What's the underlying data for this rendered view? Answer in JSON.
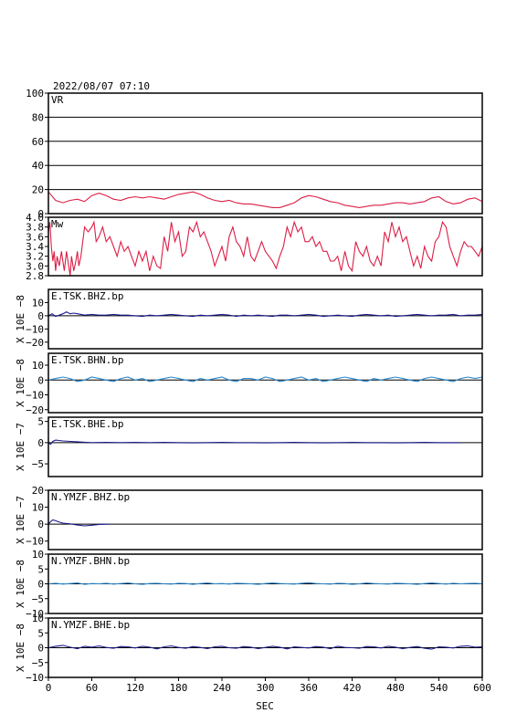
{
  "header": {
    "datetime": "2022/08/07  07:10"
  },
  "chart_data": {
    "type": "line",
    "xlabel": "SEC",
    "xlim": [
      0,
      600
    ],
    "xticks": [
      0,
      60,
      120,
      180,
      240,
      300,
      360,
      420,
      480,
      540,
      600
    ],
    "panels": [
      {
        "label": "VR",
        "ylabel": "",
        "ylim": [
          0,
          100
        ],
        "yticks": [
          0,
          20,
          40,
          60,
          80,
          100
        ],
        "ytick_labels": [
          "0",
          "20",
          "40",
          "60",
          "80",
          "100"
        ],
        "gridlines": [
          20,
          40,
          60,
          80
        ],
        "color": "#dc1e46",
        "x": [
          0,
          10,
          20,
          30,
          40,
          50,
          60,
          70,
          80,
          90,
          100,
          110,
          120,
          130,
          140,
          150,
          160,
          170,
          180,
          190,
          200,
          210,
          220,
          230,
          240,
          250,
          260,
          270,
          280,
          290,
          300,
          310,
          320,
          330,
          340,
          350,
          360,
          370,
          380,
          390,
          400,
          410,
          420,
          430,
          440,
          450,
          460,
          470,
          480,
          490,
          500,
          510,
          520,
          530,
          540,
          550,
          560,
          570,
          580,
          590,
          600
        ],
        "values": [
          18,
          11,
          9,
          11,
          12,
          10,
          15,
          17,
          15,
          12,
          11,
          13,
          14,
          13,
          14,
          13,
          12,
          14,
          16,
          17,
          18,
          16,
          13,
          11,
          10,
          11,
          9,
          8,
          8,
          7,
          6,
          5,
          5,
          7,
          9,
          13,
          15,
          14,
          12,
          10,
          9,
          7,
          6,
          5,
          6,
          7,
          7,
          8,
          9,
          9,
          8,
          9,
          10,
          13,
          14,
          10,
          8,
          9,
          12,
          13,
          10
        ]
      },
      {
        "label": "Mw",
        "ylabel": "",
        "ylim": [
          2.8,
          4.0
        ],
        "yticks": [
          2.8,
          3.0,
          3.2,
          3.4,
          3.6,
          3.8,
          4.0
        ],
        "ytick_labels": [
          "2.8",
          "3.0",
          "3.2",
          "3.4",
          "3.6",
          "3.8",
          "4.0"
        ],
        "gridlines": [],
        "color": "#dc1e46",
        "x": [
          0,
          2,
          4,
          6,
          8,
          10,
          12,
          15,
          18,
          20,
          22,
          25,
          28,
          30,
          32,
          35,
          38,
          40,
          42,
          45,
          50,
          55,
          60,
          63,
          66,
          70,
          75,
          80,
          85,
          90,
          95,
          100,
          105,
          110,
          115,
          120,
          125,
          130,
          135,
          140,
          145,
          150,
          155,
          160,
          165,
          170,
          175,
          180,
          185,
          190,
          195,
          200,
          205,
          210,
          215,
          220,
          225,
          230,
          235,
          240,
          245,
          250,
          255,
          260,
          265,
          270,
          275,
          280,
          285,
          290,
          295,
          300,
          305,
          310,
          315,
          320,
          325,
          330,
          335,
          340,
          345,
          350,
          355,
          360,
          365,
          370,
          375,
          380,
          385,
          390,
          395,
          400,
          405,
          410,
          415,
          420,
          425,
          430,
          435,
          440,
          445,
          450,
          455,
          460,
          465,
          470,
          475,
          480,
          485,
          490,
          495,
          500,
          505,
          510,
          515,
          520,
          525,
          530,
          535,
          540,
          545,
          550,
          555,
          560,
          565,
          570,
          575,
          580,
          585,
          590,
          595,
          600
        ],
        "values": [
          3.7,
          3.9,
          3.4,
          3.1,
          3.3,
          2.9,
          3.2,
          3.0,
          3.3,
          3.1,
          2.9,
          3.3,
          3.0,
          2.8,
          3.2,
          2.9,
          3.1,
          3.3,
          3.0,
          3.2,
          3.8,
          3.7,
          3.8,
          3.9,
          3.5,
          3.6,
          3.8,
          3.5,
          3.6,
          3.4,
          3.2,
          3.5,
          3.3,
          3.4,
          3.2,
          3.0,
          3.3,
          3.1,
          3.3,
          2.9,
          3.2,
          3.0,
          2.95,
          3.6,
          3.3,
          3.9,
          3.5,
          3.7,
          3.2,
          3.3,
          3.8,
          3.7,
          3.9,
          3.6,
          3.7,
          3.5,
          3.3,
          3.0,
          3.2,
          3.4,
          3.1,
          3.6,
          3.8,
          3.5,
          3.4,
          3.2,
          3.6,
          3.2,
          3.1,
          3.3,
          3.5,
          3.3,
          3.2,
          3.1,
          2.95,
          3.2,
          3.4,
          3.8,
          3.6,
          3.9,
          3.7,
          3.8,
          3.5,
          3.5,
          3.6,
          3.4,
          3.5,
          3.3,
          3.3,
          3.1,
          3.1,
          3.2,
          2.9,
          3.3,
          3.0,
          2.9,
          3.5,
          3.3,
          3.2,
          3.4,
          3.1,
          3.0,
          3.2,
          3.0,
          3.7,
          3.5,
          3.9,
          3.6,
          3.8,
          3.5,
          3.6,
          3.3,
          3.0,
          3.2,
          2.95,
          3.4,
          3.2,
          3.1,
          3.5,
          3.6,
          3.9,
          3.8,
          3.4,
          3.2,
          3.0,
          3.3,
          3.5,
          3.4,
          3.4,
          3.3,
          3.2,
          3.4
        ]
      },
      {
        "label": "E.TSK.BHZ.bp",
        "ylabel": "X 10E −8",
        "ylim": [
          -25,
          20
        ],
        "yticks": [
          10,
          0,
          -10,
          -20
        ],
        "ytick_labels": [
          "10",
          "0",
          "−10",
          "−20"
        ],
        "gridlines": [
          0
        ],
        "color": "#1a1a8c",
        "x": [
          0,
          5,
          10,
          15,
          20,
          25,
          30,
          35,
          40,
          50,
          60,
          70,
          80,
          90,
          100,
          110,
          120,
          130,
          140,
          150,
          160,
          170,
          180,
          190,
          200,
          210,
          220,
          230,
          240,
          250,
          260,
          270,
          280,
          290,
          300,
          310,
          320,
          330,
          340,
          350,
          360,
          370,
          380,
          390,
          400,
          410,
          420,
          430,
          440,
          450,
          460,
          470,
          480,
          490,
          500,
          510,
          520,
          530,
          540,
          550,
          560,
          570,
          580,
          590,
          600
        ],
        "values": [
          0,
          1.5,
          -0.5,
          0.5,
          1.5,
          3,
          1.5,
          2,
          1.5,
          0.5,
          1,
          0.5,
          0.5,
          1,
          0.5,
          0.5,
          0,
          -0.5,
          0.5,
          0,
          0.5,
          1,
          0.5,
          0,
          -0.5,
          0.5,
          0,
          0.5,
          1,
          0.5,
          -0.5,
          0.5,
          0,
          0.5,
          0,
          -0.5,
          0.5,
          0.5,
          0,
          0.5,
          1,
          0.5,
          -0.5,
          0,
          0.5,
          0,
          -0.5,
          0.5,
          1,
          0.5,
          0,
          0.5,
          -0.5,
          0,
          0.5,
          1,
          0.5,
          0,
          0.5,
          0.5,
          1,
          0,
          0.5,
          0.5,
          1
        ]
      },
      {
        "label": "E.TSK.BHN.bp",
        "ylabel": "X 10E −8",
        "ylim": [
          -22,
          18
        ],
        "yticks": [
          10,
          0,
          -10,
          -20
        ],
        "ytick_labels": [
          "10",
          "0",
          "−10",
          "−20"
        ],
        "gridlines": [
          0
        ],
        "color": "#2a8ad2",
        "x": [
          0,
          10,
          20,
          30,
          40,
          50,
          60,
          70,
          80,
          90,
          100,
          110,
          120,
          130,
          140,
          150,
          160,
          170,
          180,
          190,
          200,
          210,
          220,
          230,
          240,
          250,
          260,
          270,
          280,
          290,
          300,
          310,
          320,
          330,
          340,
          350,
          360,
          370,
          380,
          390,
          400,
          410,
          420,
          430,
          440,
          450,
          460,
          470,
          480,
          490,
          500,
          510,
          520,
          530,
          540,
          550,
          560,
          570,
          580,
          590,
          600
        ],
        "values": [
          0,
          1,
          2,
          1,
          -1,
          0,
          2,
          1,
          0,
          -1,
          1,
          2,
          0,
          1,
          -1,
          0,
          1,
          2,
          1,
          0,
          -1,
          1,
          0,
          1,
          2,
          0,
          -1,
          1,
          1,
          0,
          2,
          1,
          -1,
          0,
          1,
          2,
          0,
          1,
          -1,
          0,
          1,
          2,
          1,
          0,
          -1,
          1,
          0,
          1,
          2,
          1,
          0,
          -1,
          1,
          2,
          1,
          0,
          -1,
          1,
          2,
          1,
          2
        ]
      },
      {
        "label": "E.TSK.BHE.bp",
        "ylabel": "X 10E −7",
        "ylim": [
          -8,
          6
        ],
        "yticks": [
          5,
          0,
          -5
        ],
        "ytick_labels": [
          "5",
          "0",
          "−5"
        ],
        "gridlines": [
          0
        ],
        "color": "#1a1a8c",
        "x": [
          0,
          3,
          6,
          10,
          15,
          20,
          30,
          40,
          50,
          60,
          80,
          100,
          120,
          140,
          160,
          180,
          200,
          220,
          240,
          260,
          280,
          300,
          320,
          340,
          360,
          380,
          400,
          420,
          440,
          460,
          480,
          500,
          520,
          540,
          560,
          570
        ],
        "values": [
          0,
          -0.4,
          0.3,
          0.6,
          0.5,
          0.4,
          0.3,
          0.2,
          0.1,
          0,
          0.05,
          0,
          0.05,
          0,
          0.05,
          0,
          -0.05,
          0,
          0.05,
          0,
          0,
          -0.05,
          0,
          0.05,
          0,
          -0.05,
          0,
          0.05,
          0,
          0,
          -0.05,
          0,
          0.05,
          0,
          0,
          0
        ]
      },
      {
        "label": "N.YMZF.BHZ.bp",
        "ylabel": "X 10E −7",
        "ylim": [
          -15,
          20
        ],
        "yticks": [
          20,
          10,
          0,
          -10
        ],
        "ytick_labels": [
          "20",
          "10",
          "0",
          "−10"
        ],
        "gridlines": [
          0
        ],
        "color": "#1a1a8c",
        "x": [
          0,
          3,
          6,
          10,
          15,
          20,
          30,
          40,
          50,
          60,
          70,
          85
        ],
        "values": [
          0,
          1.5,
          2.5,
          2,
          1.2,
          0.6,
          0.2,
          -0.5,
          -1,
          -0.6,
          -0.2,
          0
        ]
      },
      {
        "label": "N.YMZF.BHN.bp",
        "ylabel": "X 10E −8",
        "ylim": [
          -10,
          10
        ],
        "yticks": [
          10,
          5,
          0,
          -5,
          -10
        ],
        "ytick_labels": [
          "10",
          "5",
          "0",
          "−5",
          "−10"
        ],
        "gridlines": [
          0
        ],
        "color": "#2a8ad2",
        "x": [
          0,
          10,
          20,
          30,
          40,
          50,
          60,
          70,
          80,
          90,
          100,
          110,
          120,
          130,
          140,
          150,
          160,
          170,
          180,
          190,
          200,
          210,
          220,
          230,
          240,
          250,
          260,
          270,
          280,
          290,
          300,
          310,
          320,
          330,
          340,
          350,
          360,
          370,
          380,
          390,
          400,
          410,
          420,
          430,
          440,
          450,
          460,
          470,
          480,
          490,
          500,
          510,
          520,
          530,
          540,
          550,
          560,
          570,
          580,
          590,
          600
        ],
        "values": [
          0,
          0.2,
          -0.1,
          0.1,
          0.3,
          -0.2,
          0.1,
          0,
          0.2,
          -0.1,
          0.1,
          0.3,
          0,
          -0.2,
          0.1,
          0.2,
          0,
          -0.1,
          0.2,
          0.1,
          -0.2,
          0.1,
          0.3,
          0,
          0.1,
          -0.1,
          0.2,
          0.1,
          0,
          -0.2,
          0.1,
          0.3,
          0.1,
          0,
          -0.1,
          0.2,
          0.4,
          0.1,
          0,
          -0.1,
          0.2,
          0.1,
          -0.2,
          0,
          0.3,
          0.1,
          0,
          -0.1,
          0.2,
          0.1,
          0,
          -0.2,
          0.1,
          0.3,
          0.1,
          -0.1,
          0.2,
          0,
          0.1,
          0.2,
          0
        ]
      },
      {
        "label": "N.YMZF.BHE.bp",
        "ylabel": "X 10E −8",
        "ylim": [
          -10,
          10
        ],
        "yticks": [
          10,
          5,
          0,
          -5,
          -10
        ],
        "ytick_labels": [
          "10",
          "5",
          "0",
          "−5",
          "−10"
        ],
        "gridlines": [
          0
        ],
        "color": "#1a1a8c",
        "x": [
          0,
          10,
          20,
          30,
          40,
          50,
          60,
          70,
          80,
          90,
          100,
          110,
          120,
          130,
          140,
          150,
          160,
          170,
          180,
          190,
          200,
          210,
          220,
          230,
          240,
          250,
          260,
          270,
          280,
          290,
          300,
          310,
          320,
          330,
          340,
          350,
          360,
          370,
          380,
          390,
          400,
          410,
          420,
          430,
          440,
          450,
          460,
          470,
          480,
          490,
          500,
          510,
          520,
          530,
          540,
          550,
          560,
          570,
          580,
          590,
          600
        ],
        "values": [
          0,
          0.5,
          0.8,
          0.2,
          -0.3,
          0.5,
          0.2,
          0.6,
          0.1,
          -0.2,
          0.4,
          0.3,
          -0.1,
          0.5,
          0.2,
          -0.4,
          0.3,
          0.6,
          0.1,
          -0.2,
          0.4,
          0.1,
          -0.3,
          0.3,
          0.5,
          0,
          -0.2,
          0.4,
          0.2,
          -0.3,
          0.1,
          0.5,
          0.2,
          -0.4,
          0.3,
          0.1,
          -0.1,
          0.4,
          0.2,
          -0.3,
          0.5,
          0.1,
          0,
          -0.2,
          0.4,
          0.3,
          -0.1,
          0.5,
          0.2,
          -0.3,
          0.1,
          0.4,
          -0.2,
          -0.5,
          0.3,
          0.2,
          -0.1,
          0.5,
          0.6,
          0.2,
          0.3
        ]
      }
    ]
  }
}
